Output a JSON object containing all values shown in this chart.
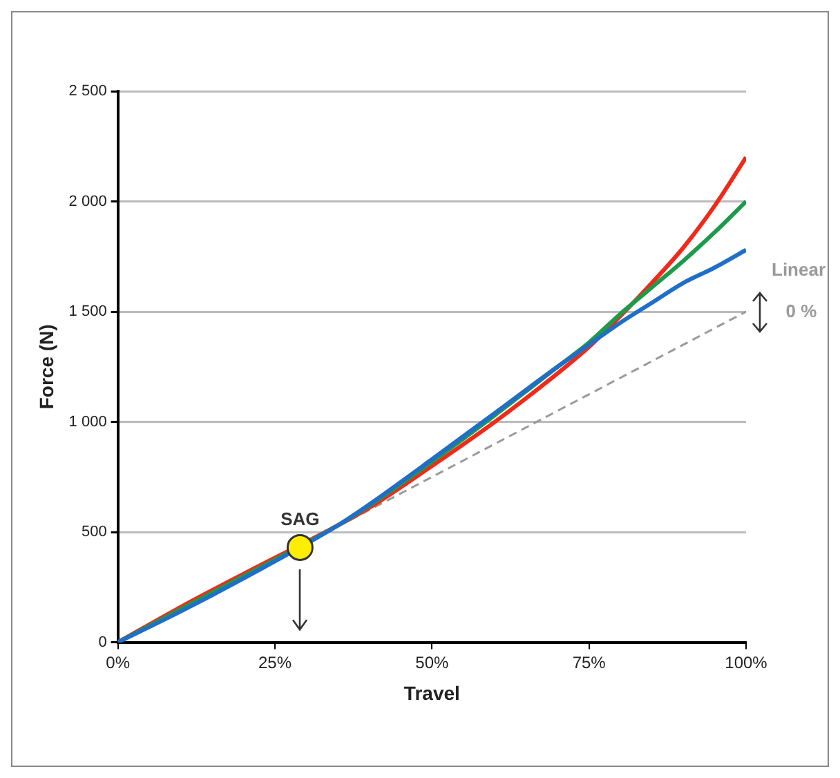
{
  "chart_data": {
    "type": "line",
    "xlabel": "Travel",
    "ylabel": "Force (N)",
    "xlim": [
      0,
      100
    ],
    "xticks": [
      {
        "value": 0,
        "label": "0%"
      },
      {
        "value": 25,
        "label": "25%"
      },
      {
        "value": 50,
        "label": "50%"
      },
      {
        "value": 75,
        "label": "75%"
      },
      {
        "value": 100,
        "label": "100%"
      }
    ],
    "ylim": [
      0,
      2500
    ],
    "yticks": [
      {
        "value": 0,
        "label": "0"
      },
      {
        "value": 500,
        "label": "500"
      },
      {
        "value": 1000,
        "label": "1 000"
      },
      {
        "value": 1500,
        "label": "1 500"
      },
      {
        "value": 2000,
        "label": "2 000"
      },
      {
        "value": 2500,
        "label": "2 500"
      }
    ],
    "grid": "y",
    "legend": false,
    "marker": "none",
    "line_style": "solid",
    "series": [
      {
        "color": "#9a9a9a",
        "line_style": "dashed",
        "name": "Linear",
        "x": [
          0,
          100
        ],
        "values": [
          0,
          1500
        ]
      },
      {
        "color": "#f02a1a",
        "x": [
          0,
          10,
          20,
          35,
          40,
          50,
          60,
          70,
          75,
          80,
          85,
          90,
          95,
          100
        ],
        "values": [
          0,
          160,
          310,
          530,
          610,
          800,
          1000,
          1220,
          1340,
          1480,
          1630,
          1790,
          1980,
          2200
        ]
      },
      {
        "color": "#1e9a4a",
        "x": [
          0,
          10,
          20,
          35,
          40,
          50,
          60,
          70,
          75,
          80,
          85,
          90,
          95,
          100
        ],
        "values": [
          0,
          150,
          300,
          530,
          620,
          820,
          1030,
          1250,
          1360,
          1490,
          1610,
          1730,
          1860,
          2000
        ]
      },
      {
        "color": "#1f6ec8",
        "x": [
          0,
          10,
          20,
          35,
          40,
          50,
          60,
          70,
          75,
          80,
          85,
          90,
          95,
          100
        ],
        "values": [
          0,
          140,
          290,
          530,
          625,
          830,
          1040,
          1250,
          1350,
          1450,
          1540,
          1630,
          1700,
          1780
        ]
      },
      {
        "type": "scatter",
        "name": "SAG",
        "color": "#ffee00",
        "marker": "circle",
        "x": [
          29
        ],
        "values": [
          430
        ]
      }
    ],
    "annotations": [
      {
        "text": "0 %",
        "x": 100,
        "y": 1500
      }
    ]
  }
}
